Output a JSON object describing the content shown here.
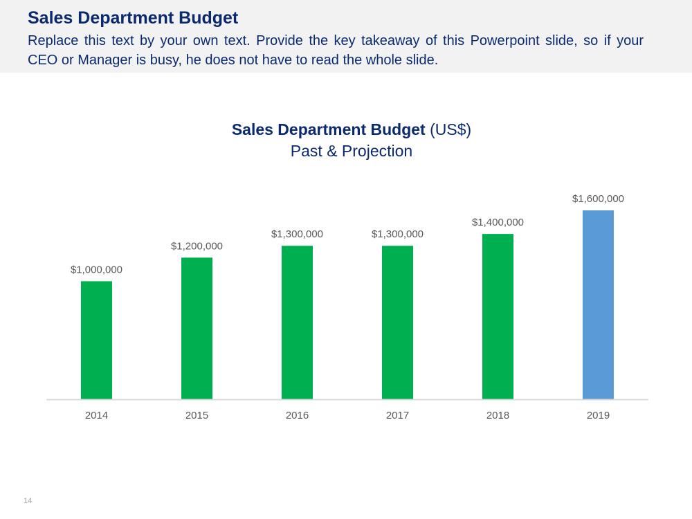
{
  "slide": {
    "title": "Sales Department Budget",
    "takeaway": "Replace this text by your own text. Provide the key takeaway of this Powerpoint slide, so if your CEO or Manager is busy, he does not have to read the whole slide.",
    "page_number": "14"
  },
  "chart_data": {
    "type": "bar",
    "title_bold": "Sales Department Budget",
    "title_rest": "(US$)",
    "subtitle": "Past & Projection",
    "categories": [
      "2014",
      "2015",
      "2016",
      "2017",
      "2018",
      "2019"
    ],
    "values": [
      1000000,
      1200000,
      1300000,
      1300000,
      1400000,
      1600000
    ],
    "data_labels": [
      "$1,000,000",
      "$1,200,000",
      "$1,300,000",
      "$1,300,000",
      "$1,400,000",
      "$1,600,000"
    ],
    "bar_colors": [
      "#00b050",
      "#00b050",
      "#00b050",
      "#00b050",
      "#00b050",
      "#5b9bd5"
    ],
    "ylim": [
      0,
      1600000
    ],
    "grid": false,
    "xlabel": "",
    "ylabel": ""
  },
  "colors": {
    "title": "#0b2a6e",
    "past": "#00b050",
    "projection": "#5b9bd5",
    "axis": "#d9d9d9",
    "label": "#595959"
  }
}
